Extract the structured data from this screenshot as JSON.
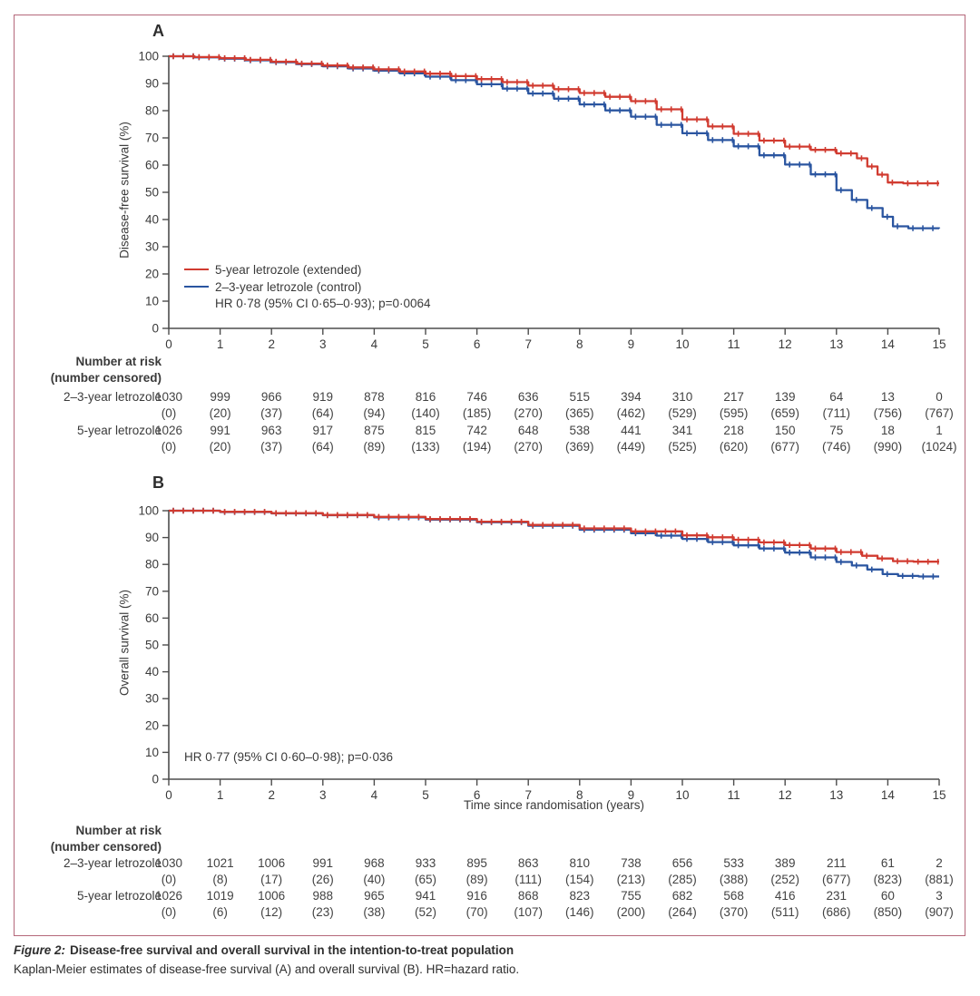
{
  "colors": {
    "extended_red": "#d13b30",
    "control_blue": "#2a55a0",
    "figure_border": "#b5687a",
    "axis": "#4d4d4d",
    "text": "#3a3a3a"
  },
  "figure_caption": {
    "prefix": "Figure 2:",
    "title": "Disease-free survival and overall survival in the intention-to-treat population",
    "note": "Kaplan-Meier estimates of disease-free survival (A) and overall survival (B). HR=hazard ratio."
  },
  "chart_data": [
    {
      "panel": "A",
      "type": "line",
      "subtype": "kaplan-meier-step",
      "ylabel": "Disease-free survival (%)",
      "xlabel": "",
      "xlim": [
        0,
        15
      ],
      "ylim": [
        0,
        100
      ],
      "xticks": [
        0,
        1,
        2,
        3,
        4,
        5,
        6,
        7,
        8,
        9,
        10,
        11,
        12,
        13,
        14,
        15
      ],
      "yticks": [
        0,
        10,
        20,
        30,
        40,
        50,
        60,
        70,
        80,
        90,
        100
      ],
      "legend_visible": true,
      "hr_text": "HR 0·78 (95% CI 0·65–0·93); p=0·0064",
      "series": [
        {
          "name": "5-year letrozole (extended)",
          "color": "#d13b30",
          "points": [
            [
              0,
              100
            ],
            [
              0.5,
              99.7
            ],
            [
              1,
              99.3
            ],
            [
              1.5,
              98.7
            ],
            [
              2,
              98.0
            ],
            [
              2.5,
              97.3
            ],
            [
              3,
              96.6
            ],
            [
              3.5,
              95.9
            ],
            [
              4,
              95.2
            ],
            [
              4.5,
              94.4
            ],
            [
              5,
              93.6
            ],
            [
              5.5,
              92.7
            ],
            [
              6,
              91.6
            ],
            [
              6.5,
              90.5
            ],
            [
              7,
              89.2
            ],
            [
              7.5,
              87.9
            ],
            [
              8,
              86.5
            ],
            [
              8.5,
              85.1
            ],
            [
              9,
              83.5
            ],
            [
              9.5,
              80.5
            ],
            [
              10,
              76.8
            ],
            [
              10.5,
              74.2
            ],
            [
              11,
              71.5
            ],
            [
              11.5,
              69.0
            ],
            [
              12,
              66.8
            ],
            [
              12.5,
              65.6
            ],
            [
              13,
              64.3
            ],
            [
              13.4,
              62.5
            ],
            [
              13.6,
              59.5
            ],
            [
              13.8,
              56.5
            ],
            [
              14.0,
              53.6
            ],
            [
              14.3,
              53.3
            ],
            [
              15,
              53.3
            ]
          ]
        },
        {
          "name": "2–3-year letrozole (control)",
          "color": "#2a55a0",
          "points": [
            [
              0,
              100
            ],
            [
              0.5,
              99.6
            ],
            [
              1,
              99.1
            ],
            [
              1.5,
              98.5
            ],
            [
              2,
              97.8
            ],
            [
              2.5,
              97.1
            ],
            [
              3,
              96.3
            ],
            [
              3.5,
              95.5
            ],
            [
              4,
              94.7
            ],
            [
              4.5,
              93.7
            ],
            [
              5,
              92.5
            ],
            [
              5.5,
              91.2
            ],
            [
              6,
              89.7
            ],
            [
              6.5,
              88.1
            ],
            [
              7,
              86.3
            ],
            [
              7.5,
              84.4
            ],
            [
              8,
              82.3
            ],
            [
              8.5,
              80.1
            ],
            [
              9,
              77.8
            ],
            [
              9.5,
              74.8
            ],
            [
              10,
              71.7
            ],
            [
              10.5,
              69.2
            ],
            [
              11,
              66.9
            ],
            [
              11.5,
              63.6
            ],
            [
              12,
              60.2
            ],
            [
              12.5,
              56.6
            ],
            [
              13,
              50.8
            ],
            [
              13.3,
              47.2
            ],
            [
              13.6,
              44.2
            ],
            [
              13.9,
              41.0
            ],
            [
              14.1,
              37.5
            ],
            [
              14.4,
              36.8
            ],
            [
              15,
              36.7
            ]
          ]
        }
      ]
    },
    {
      "panel": "B",
      "type": "line",
      "subtype": "kaplan-meier-step",
      "ylabel": "Overall survival (%)",
      "xlabel": "Time since randomisation (years)",
      "xlim": [
        0,
        15
      ],
      "ylim": [
        0,
        100
      ],
      "xticks": [
        0,
        1,
        2,
        3,
        4,
        5,
        6,
        7,
        8,
        9,
        10,
        11,
        12,
        13,
        14,
        15
      ],
      "yticks": [
        0,
        10,
        20,
        30,
        40,
        50,
        60,
        70,
        80,
        90,
        100
      ],
      "legend_visible": false,
      "hr_text": "HR 0·77 (95% CI 0·60–0·98); p=0·036",
      "series": [
        {
          "name": "5-year letrozole (extended)",
          "color": "#d13b30",
          "points": [
            [
              0,
              100
            ],
            [
              1,
              99.6
            ],
            [
              2,
              99.1
            ],
            [
              3,
              98.4
            ],
            [
              4,
              97.7
            ],
            [
              5,
              96.9
            ],
            [
              6,
              95.9
            ],
            [
              7,
              94.7
            ],
            [
              8,
              93.4
            ],
            [
              9,
              92.3
            ],
            [
              10,
              90.8
            ],
            [
              10.5,
              90.1
            ],
            [
              11,
              89.2
            ],
            [
              11.5,
              88.2
            ],
            [
              12,
              87.2
            ],
            [
              12.5,
              85.9
            ],
            [
              13,
              84.6
            ],
            [
              13.5,
              83.2
            ],
            [
              13.8,
              82.2
            ],
            [
              14.1,
              81.2
            ],
            [
              14.5,
              81.0
            ],
            [
              15,
              81.0
            ]
          ]
        },
        {
          "name": "2–3-year letrozole (control)",
          "color": "#2a55a0",
          "points": [
            [
              0,
              100
            ],
            [
              1,
              99.5
            ],
            [
              2,
              99.0
            ],
            [
              3,
              98.3
            ],
            [
              4,
              97.5
            ],
            [
              5,
              96.7
            ],
            [
              6,
              95.7
            ],
            [
              7,
              94.4
            ],
            [
              8,
              92.9
            ],
            [
              9,
              91.6
            ],
            [
              9.5,
              90.7
            ],
            [
              10,
              89.5
            ],
            [
              10.5,
              88.3
            ],
            [
              11,
              87.1
            ],
            [
              11.5,
              85.9
            ],
            [
              12,
              84.4
            ],
            [
              12.5,
              82.6
            ],
            [
              13,
              80.9
            ],
            [
              13.3,
              79.6
            ],
            [
              13.6,
              78.1
            ],
            [
              13.9,
              76.4
            ],
            [
              14.2,
              75.7
            ],
            [
              14.6,
              75.5
            ],
            [
              15,
              75.5
            ]
          ]
        }
      ]
    }
  ],
  "risk_tables": [
    {
      "panel": "A",
      "header_line1": "Number at risk",
      "header_line2": "(number censored)",
      "timepoints": [
        0,
        1,
        2,
        3,
        4,
        5,
        6,
        7,
        8,
        9,
        10,
        11,
        12,
        13,
        14,
        15
      ],
      "rows": [
        {
          "label": "2–3-year letrozole",
          "at_risk": [
            1030,
            999,
            966,
            919,
            878,
            816,
            746,
            636,
            515,
            394,
            310,
            217,
            139,
            64,
            13,
            0
          ],
          "censored": [
            0,
            20,
            37,
            64,
            94,
            140,
            185,
            270,
            365,
            462,
            529,
            595,
            659,
            711,
            756,
            767
          ]
        },
        {
          "label": "5-year letrozole",
          "at_risk": [
            1026,
            991,
            963,
            917,
            875,
            815,
            742,
            648,
            538,
            441,
            341,
            218,
            150,
            75,
            18,
            1
          ],
          "censored": [
            0,
            20,
            37,
            64,
            89,
            133,
            194,
            270,
            369,
            449,
            525,
            620,
            677,
            746,
            990,
            1024
          ]
        }
      ]
    },
    {
      "panel": "B",
      "header_line1": "Number at risk",
      "header_line2": "(number censored)",
      "timepoints": [
        0,
        1,
        2,
        3,
        4,
        5,
        6,
        7,
        8,
        9,
        10,
        11,
        12,
        13,
        14,
        15
      ],
      "rows": [
        {
          "label": "2–3-year letrozole",
          "at_risk": [
            1030,
            1021,
            1006,
            991,
            968,
            933,
            895,
            863,
            810,
            738,
            656,
            533,
            389,
            211,
            61,
            2
          ],
          "censored": [
            0,
            8,
            17,
            26,
            40,
            65,
            89,
            111,
            154,
            213,
            285,
            388,
            252,
            677,
            823,
            881
          ]
        },
        {
          "label": "5-year letrozole",
          "at_risk": [
            1026,
            1019,
            1006,
            988,
            965,
            941,
            916,
            868,
            823,
            755,
            682,
            568,
            416,
            231,
            60,
            3
          ],
          "censored": [
            0,
            6,
            12,
            23,
            38,
            52,
            70,
            107,
            146,
            200,
            264,
            370,
            511,
            686,
            850,
            907
          ]
        }
      ]
    }
  ]
}
